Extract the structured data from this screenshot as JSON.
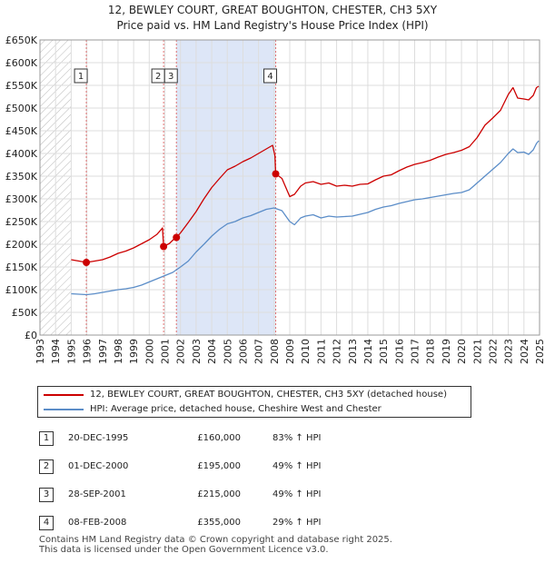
{
  "title": "12, BEWLEY COURT, GREAT BOUGHTON, CHESTER, CH3 5XY",
  "subtitle": "Price paid vs. HM Land Registry's House Price Index (HPI)",
  "colors": {
    "property_line": "#cc0000",
    "hpi_line": "#5b8dc8",
    "highlight_band": "#dde6f7",
    "hatch": "#bbbbbb",
    "grid": "#dddddd",
    "vline": "#e07070"
  },
  "legend": {
    "property": "12, BEWLEY COURT, GREAT BOUGHTON, CHESTER, CH3 5XY (detached house)",
    "hpi": "HPI: Average price, detached house, Cheshire West and Chester"
  },
  "sales": [
    {
      "num": "1",
      "date": "20-DEC-1995",
      "price": "£160,000",
      "hpi_change": "83% ↑ HPI"
    },
    {
      "num": "2",
      "date": "01-DEC-2000",
      "price": "£195,000",
      "hpi_change": "49% ↑ HPI"
    },
    {
      "num": "3",
      "date": "28-SEP-2001",
      "price": "£215,000",
      "hpi_change": "49% ↑ HPI"
    },
    {
      "num": "4",
      "date": "08-FEB-2008",
      "price": "£355,000",
      "hpi_change": "29% ↑ HPI"
    }
  ],
  "footer": {
    "line1": "Contains HM Land Registry data © Crown copyright and database right 2025.",
    "line2": "This data is licensed under the Open Government Licence v3.0."
  },
  "chart_data": {
    "type": "line",
    "title": "12, BEWLEY COURT, GREAT BOUGHTON, CHESTER, CH3 5XY",
    "subtitle": "Price paid vs. HM Land Registry's House Price Index (HPI)",
    "xlim": [
      1993,
      2025
    ],
    "ylim": [
      0,
      650000
    ],
    "x_ticks": [
      1993,
      1994,
      1995,
      1996,
      1997,
      1998,
      1999,
      2000,
      2001,
      2002,
      2003,
      2004,
      2005,
      2006,
      2007,
      2008,
      2009,
      2010,
      2011,
      2012,
      2013,
      2014,
      2015,
      2016,
      2017,
      2018,
      2019,
      2020,
      2021,
      2022,
      2023,
      2024,
      2025
    ],
    "y_ticks": [
      {
        "value": 0,
        "label": "£0"
      },
      {
        "value": 50000,
        "label": "£50K"
      },
      {
        "value": 100000,
        "label": "£100K"
      },
      {
        "value": 150000,
        "label": "£150K"
      },
      {
        "value": 200000,
        "label": "£200K"
      },
      {
        "value": 250000,
        "label": "£250K"
      },
      {
        "value": 300000,
        "label": "£300K"
      },
      {
        "value": 350000,
        "label": "£350K"
      },
      {
        "value": 400000,
        "label": "£400K"
      },
      {
        "value": 450000,
        "label": "£450K"
      },
      {
        "value": 500000,
        "label": "£500K"
      },
      {
        "value": 550000,
        "label": "£550K"
      },
      {
        "value": 600000,
        "label": "£600K"
      },
      {
        "value": 650000,
        "label": "£650K"
      }
    ],
    "hatched_until": 1995.0,
    "highlight_range": [
      2001.74,
      2008.1
    ],
    "series": [
      {
        "name": "12, BEWLEY COURT, GREAT BOUGHTON, CHESTER, CH3 5XY (detached house)",
        "color": "#cc0000",
        "points": [
          [
            1995.0,
            166000
          ],
          [
            1995.5,
            163000
          ],
          [
            1995.97,
            160000
          ],
          [
            1996.5,
            163000
          ],
          [
            1997.0,
            166000
          ],
          [
            1997.5,
            172000
          ],
          [
            1998.0,
            180000
          ],
          [
            1998.5,
            185000
          ],
          [
            1999.0,
            192000
          ],
          [
            1999.5,
            201000
          ],
          [
            2000.0,
            210000
          ],
          [
            2000.5,
            222000
          ],
          [
            2000.85,
            236000
          ],
          [
            2000.92,
            195000
          ],
          [
            2001.3,
            202000
          ],
          [
            2001.6,
            212000
          ],
          [
            2001.74,
            215000
          ],
          [
            2002.0,
            225000
          ],
          [
            2002.5,
            248000
          ],
          [
            2003.0,
            272000
          ],
          [
            2003.5,
            300000
          ],
          [
            2004.0,
            325000
          ],
          [
            2004.5,
            345000
          ],
          [
            2005.0,
            364000
          ],
          [
            2005.5,
            372000
          ],
          [
            2006.0,
            382000
          ],
          [
            2006.5,
            390000
          ],
          [
            2007.0,
            400000
          ],
          [
            2007.5,
            410000
          ],
          [
            2007.9,
            418000
          ],
          [
            2008.05,
            395000
          ],
          [
            2008.1,
            355000
          ],
          [
            2008.5,
            345000
          ],
          [
            2009.0,
            305000
          ],
          [
            2009.3,
            310000
          ],
          [
            2009.7,
            328000
          ],
          [
            2010.0,
            335000
          ],
          [
            2010.5,
            338000
          ],
          [
            2011.0,
            332000
          ],
          [
            2011.5,
            335000
          ],
          [
            2012.0,
            328000
          ],
          [
            2012.5,
            330000
          ],
          [
            2013.0,
            328000
          ],
          [
            2013.5,
            332000
          ],
          [
            2014.0,
            333000
          ],
          [
            2014.5,
            342000
          ],
          [
            2015.0,
            350000
          ],
          [
            2015.5,
            353000
          ],
          [
            2016.0,
            362000
          ],
          [
            2016.5,
            370000
          ],
          [
            2017.0,
            376000
          ],
          [
            2017.5,
            380000
          ],
          [
            2018.0,
            385000
          ],
          [
            2018.5,
            392000
          ],
          [
            2019.0,
            398000
          ],
          [
            2019.5,
            402000
          ],
          [
            2020.0,
            407000
          ],
          [
            2020.5,
            415000
          ],
          [
            2021.0,
            435000
          ],
          [
            2021.5,
            462000
          ],
          [
            2022.0,
            478000
          ],
          [
            2022.5,
            495000
          ],
          [
            2023.0,
            530000
          ],
          [
            2023.3,
            545000
          ],
          [
            2023.6,
            522000
          ],
          [
            2024.0,
            520000
          ],
          [
            2024.3,
            518000
          ],
          [
            2024.6,
            528000
          ],
          [
            2024.8,
            545000
          ],
          [
            2024.95,
            548000
          ]
        ]
      },
      {
        "name": "HPI: Average price, detached house, Cheshire West and Chester",
        "color": "#5b8dc8",
        "points": [
          [
            1995.0,
            91000
          ],
          [
            1995.5,
            90000
          ],
          [
            1996.0,
            89000
          ],
          [
            1996.5,
            91000
          ],
          [
            1997.0,
            94000
          ],
          [
            1997.5,
            97000
          ],
          [
            1998.0,
            100000
          ],
          [
            1998.5,
            102000
          ],
          [
            1999.0,
            105000
          ],
          [
            1999.5,
            110000
          ],
          [
            2000.0,
            117000
          ],
          [
            2000.5,
            124000
          ],
          [
            2001.0,
            131000
          ],
          [
            2001.5,
            138000
          ],
          [
            2002.0,
            150000
          ],
          [
            2002.5,
            163000
          ],
          [
            2003.0,
            183000
          ],
          [
            2003.5,
            200000
          ],
          [
            2004.0,
            218000
          ],
          [
            2004.5,
            233000
          ],
          [
            2005.0,
            245000
          ],
          [
            2005.5,
            250000
          ],
          [
            2006.0,
            258000
          ],
          [
            2006.5,
            263000
          ],
          [
            2007.0,
            270000
          ],
          [
            2007.5,
            277000
          ],
          [
            2008.0,
            280000
          ],
          [
            2008.5,
            274000
          ],
          [
            2009.0,
            250000
          ],
          [
            2009.3,
            243000
          ],
          [
            2009.7,
            258000
          ],
          [
            2010.0,
            262000
          ],
          [
            2010.5,
            265000
          ],
          [
            2011.0,
            258000
          ],
          [
            2011.5,
            262000
          ],
          [
            2012.0,
            260000
          ],
          [
            2012.5,
            261000
          ],
          [
            2013.0,
            262000
          ],
          [
            2013.5,
            266000
          ],
          [
            2014.0,
            270000
          ],
          [
            2014.5,
            277000
          ],
          [
            2015.0,
            282000
          ],
          [
            2015.5,
            285000
          ],
          [
            2016.0,
            290000
          ],
          [
            2016.5,
            294000
          ],
          [
            2017.0,
            298000
          ],
          [
            2017.5,
            300000
          ],
          [
            2018.0,
            303000
          ],
          [
            2018.5,
            306000
          ],
          [
            2019.0,
            309000
          ],
          [
            2019.5,
            312000
          ],
          [
            2020.0,
            314000
          ],
          [
            2020.5,
            320000
          ],
          [
            2021.0,
            335000
          ],
          [
            2021.5,
            350000
          ],
          [
            2022.0,
            365000
          ],
          [
            2022.5,
            380000
          ],
          [
            2023.0,
            400000
          ],
          [
            2023.3,
            410000
          ],
          [
            2023.6,
            402000
          ],
          [
            2024.0,
            403000
          ],
          [
            2024.3,
            398000
          ],
          [
            2024.6,
            408000
          ],
          [
            2024.8,
            422000
          ],
          [
            2024.95,
            428000
          ]
        ]
      }
    ],
    "sales": [
      {
        "label": "1",
        "x": 1995.97,
        "y": 160000
      },
      {
        "label": "2",
        "x": 2000.92,
        "y": 195000
      },
      {
        "label": "3",
        "x": 2001.74,
        "y": 215000
      },
      {
        "label": "4",
        "x": 2008.1,
        "y": 355000
      }
    ]
  }
}
